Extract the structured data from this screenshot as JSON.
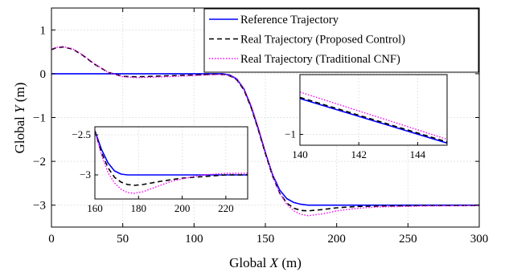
{
  "chart_data": {
    "type": "line",
    "xlabel": {
      "prefix": "Global ",
      "var": "X",
      "suffix": " (m)"
    },
    "ylabel": {
      "prefix": "Global ",
      "var": "Y",
      "suffix": " (m)"
    },
    "xlim": [
      0,
      300
    ],
    "ylim": [
      -3.5,
      1.5
    ],
    "xticks": [
      0,
      50,
      100,
      150,
      200,
      250,
      300
    ],
    "yticks": [
      1,
      0,
      -1,
      -2,
      -3
    ],
    "grid": true,
    "legend_position": "top-right",
    "series": [
      {
        "name": "Reference Trajectory",
        "color": "#0000ff",
        "style": "solid",
        "x": [
          0,
          120,
          125,
          130,
          135,
          140,
          145,
          150,
          155,
          160,
          165,
          170,
          175,
          180,
          200,
          230,
          260,
          300
        ],
        "y": [
          0,
          0,
          -0.03,
          -0.12,
          -0.35,
          -0.75,
          -1.25,
          -1.8,
          -2.3,
          -2.65,
          -2.85,
          -2.94,
          -2.98,
          -3.0,
          -3.0,
          -3.0,
          -3.0,
          -3.0
        ]
      },
      {
        "name": "Real Trajectory (Proposed Control)",
        "color": "#000000",
        "style": "dashed",
        "x": [
          0,
          3,
          8,
          15,
          22,
          30,
          40,
          50,
          60,
          80,
          100,
          115,
          122,
          126,
          130,
          135,
          140,
          145,
          150,
          155,
          160,
          165,
          170,
          175,
          180,
          190,
          200,
          215,
          230,
          260,
          300
        ],
        "y": [
          0.55,
          0.59,
          0.61,
          0.56,
          0.42,
          0.22,
          0.03,
          -0.06,
          -0.07,
          -0.05,
          -0.03,
          -0.01,
          -0.02,
          -0.06,
          -0.14,
          -0.37,
          -0.77,
          -1.27,
          -1.82,
          -2.33,
          -2.72,
          -2.95,
          -3.07,
          -3.12,
          -3.13,
          -3.1,
          -3.06,
          -3.03,
          -3.02,
          -3.01,
          -3.01
        ]
      },
      {
        "name": "Real Trajectory (Traditional CNF)",
        "color": "#ff00ff",
        "style": "dotted",
        "x": [
          0,
          3,
          8,
          15,
          22,
          30,
          40,
          50,
          60,
          80,
          100,
          115,
          122,
          126,
          130,
          135,
          140,
          145,
          150,
          155,
          160,
          165,
          170,
          175,
          180,
          190,
          200,
          215,
          230,
          260,
          300
        ],
        "y": [
          0.56,
          0.6,
          0.62,
          0.57,
          0.43,
          0.23,
          0.03,
          -0.07,
          -0.09,
          -0.07,
          -0.04,
          -0.02,
          -0.02,
          -0.05,
          -0.13,
          -0.34,
          -0.72,
          -1.22,
          -1.78,
          -2.3,
          -2.72,
          -2.98,
          -3.13,
          -3.21,
          -3.24,
          -3.2,
          -3.13,
          -3.07,
          -3.04,
          -3.02,
          -3.01
        ]
      }
    ],
    "insets": [
      {
        "xlim": [
          160,
          230
        ],
        "ylim": [
          -3.3,
          -2.4
        ],
        "xticks": [
          160,
          180,
          200,
          220
        ],
        "yticks": [
          -2.5,
          -3
        ],
        "series": [
          {
            "x": [
              160,
              163,
              166,
              169,
              172,
              175,
              178,
              230
            ],
            "y": [
              -2.45,
              -2.68,
              -2.85,
              -2.95,
              -2.99,
              -3.0,
              -3.0,
              -3.0
            ]
          },
          {
            "x": [
              160,
              163,
              166,
              169,
              172,
              175,
              178,
              182,
              186,
              190,
              195,
              200,
              205,
              210,
              215,
              220,
              225,
              230
            ],
            "y": [
              -2.45,
              -2.72,
              -2.91,
              -3.03,
              -3.09,
              -3.12,
              -3.13,
              -3.12,
              -3.1,
              -3.08,
              -3.06,
              -3.04,
              -3.03,
              -3.02,
              -3.01,
              -3.0,
              -3.0,
              -3.0
            ]
          },
          {
            "x": [
              160,
              163,
              166,
              169,
              172,
              175,
              178,
              182,
              186,
              190,
              195,
              200,
              205,
              210,
              215,
              220,
              225,
              230
            ],
            "y": [
              -2.45,
              -2.75,
              -2.97,
              -3.1,
              -3.18,
              -3.22,
              -3.23,
              -3.21,
              -3.17,
              -3.13,
              -3.08,
              -3.05,
              -3.02,
              -3.0,
              -2.99,
              -2.98,
              -2.98,
              -2.98
            ]
          }
        ]
      },
      {
        "xlim": [
          140,
          145
        ],
        "ylim": [
          -1.1,
          -0.45
        ],
        "xticks": [
          140,
          142,
          144
        ],
        "yticks": [
          -1
        ],
        "series": [
          {
            "x": [
              140,
              145
            ],
            "y": [
              -0.67,
              -1.08
            ]
          },
          {
            "x": [
              140,
              145
            ],
            "y": [
              -0.66,
              -1.07
            ]
          },
          {
            "x": [
              140,
              145
            ],
            "y": [
              -0.61,
              -1.045
            ]
          }
        ]
      }
    ]
  }
}
